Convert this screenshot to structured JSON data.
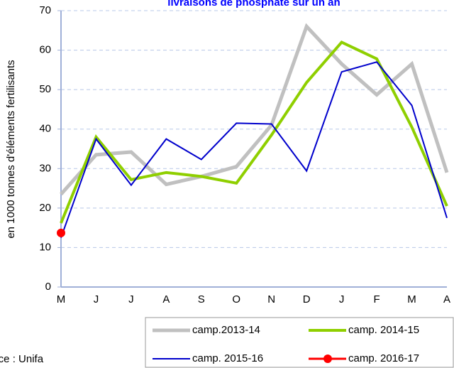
{
  "chart_data": {
    "type": "line",
    "title": "livraisons de phosphate sur un an",
    "y_label": "en 1000 tonnes d'éléments fertilisants",
    "source": "Source : Unifa",
    "categories": [
      "M",
      "J",
      "J",
      "A",
      "S",
      "O",
      "N",
      "D",
      "J",
      "F",
      "M",
      "A"
    ],
    "series": [
      {
        "name": "camp.2013-14",
        "color": "#c0c0c0",
        "values": [
          23.5,
          33.5,
          34.2,
          26,
          28,
          30.5,
          41,
          66,
          56.5,
          48.7,
          56.5,
          29
        ]
      },
      {
        "name": "camp. 2014-15",
        "color": "#8fcf00",
        "values": [
          16.2,
          38,
          27.2,
          29,
          28,
          26.3,
          38.5,
          51.8,
          62,
          57.8,
          40.5,
          20.5
        ]
      },
      {
        "name": "camp. 2015-16",
        "color": "#0000cc",
        "values": [
          12.5,
          37.5,
          25.8,
          37.5,
          32.3,
          41.5,
          41.3,
          29.4,
          54.5,
          57,
          46,
          17.5
        ]
      },
      {
        "name": "camp. 2016-17",
        "color": "#ff0000",
        "values": [
          13.7,
          null,
          null,
          null,
          null,
          null,
          null,
          null,
          null,
          null,
          null,
          null
        ]
      }
    ],
    "ylim": [
      0,
      70
    ],
    "yticks": [
      0,
      10,
      20,
      30,
      40,
      50,
      60,
      70
    ],
    "grid": true
  }
}
